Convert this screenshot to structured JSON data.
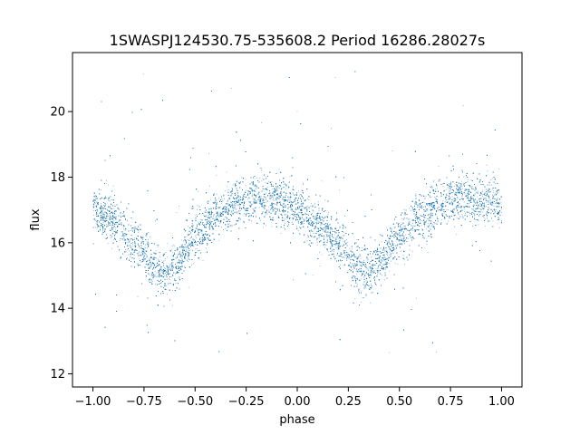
{
  "chart_data": {
    "type": "scatter",
    "title": "1SWASPJ124530.75-535608.2 Period 16286.28027s",
    "xlabel": "phase",
    "ylabel": "flux",
    "xlim": [
      -1.1,
      1.1
    ],
    "ylim": [
      11.6,
      21.8
    ],
    "xticks": [
      -1.0,
      -0.75,
      -0.5,
      -0.25,
      0.0,
      0.25,
      0.5,
      0.75,
      1.0
    ],
    "xtick_labels": [
      "−1.00",
      "−0.75",
      "−0.50",
      "−0.25",
      "0.00",
      "0.25",
      "0.50",
      "0.75",
      "1.00"
    ],
    "yticks": [
      12,
      14,
      16,
      18,
      20
    ],
    "ytick_labels": [
      "12",
      "14",
      "16",
      "18",
      "20"
    ],
    "grid": false,
    "point_color": "#1f77b4",
    "model": {
      "description_points_phase": [
        -1.0,
        -0.9,
        -0.8,
        -0.7,
        -0.65,
        -0.6,
        -0.5,
        -0.4,
        -0.3,
        -0.2,
        -0.1,
        0.0,
        0.1,
        0.2,
        0.3,
        0.35,
        0.4,
        0.5,
        0.6,
        0.7,
        0.8,
        0.9,
        1.0
      ],
      "description_points_flux": [
        17.0,
        16.7,
        16.0,
        15.3,
        15.1,
        15.3,
        16.2,
        16.9,
        17.2,
        17.4,
        17.3,
        17.0,
        16.6,
        16.0,
        15.3,
        15.1,
        15.4,
        16.2,
        16.8,
        17.2,
        17.4,
        17.3,
        17.2
      ]
    },
    "series": [
      {
        "x_range": [
          -1.0,
          1.0
        ],
        "point_count_approx": 30000,
        "scatter_spread": 0.35,
        "outlier_range": [
          12.0,
          21.3
        ]
      }
    ]
  }
}
